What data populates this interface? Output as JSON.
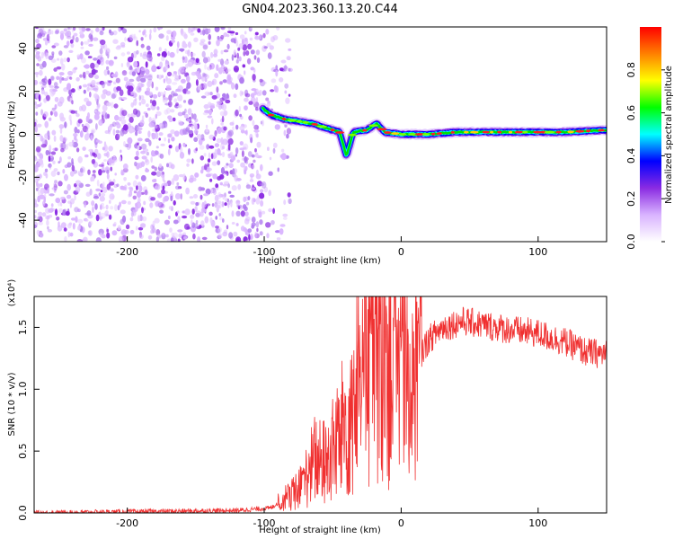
{
  "title": "GN04.2023.360.13.20.C44",
  "chart_data": [
    {
      "type": "heatmap",
      "xlabel": "Height of straight line (km)",
      "ylabel": "Frequency (Hz)",
      "xlim": [
        -268,
        150
      ],
      "ylim": [
        -50,
        50
      ],
      "x_ticks": [
        "-200",
        "-100",
        "0",
        "100"
      ],
      "y_ticks": [
        "40",
        "20",
        "0",
        "-20",
        "-40"
      ],
      "noise_region_x": [
        -268,
        -92
      ],
      "signal_track": [
        {
          "x": -101,
          "y": 12
        },
        {
          "x": -95,
          "y": 9
        },
        {
          "x": -85,
          "y": 7
        },
        {
          "x": -75,
          "y": 6
        },
        {
          "x": -65,
          "y": 5
        },
        {
          "x": -55,
          "y": 3
        },
        {
          "x": -45,
          "y": 1
        },
        {
          "x": -40,
          "y": -10
        },
        {
          "x": -35,
          "y": 1
        },
        {
          "x": -25,
          "y": 2
        },
        {
          "x": -18,
          "y": 5
        },
        {
          "x": -12,
          "y": 1
        },
        {
          "x": 0,
          "y": 0
        },
        {
          "x": 20,
          "y": 0
        },
        {
          "x": 40,
          "y": 1
        },
        {
          "x": 60,
          "y": 1
        },
        {
          "x": 80,
          "y": 1
        },
        {
          "x": 100,
          "y": 1
        },
        {
          "x": 120,
          "y": 1
        },
        {
          "x": 150,
          "y": 2
        }
      ],
      "colorbar": {
        "label": "Normalized spectral amplitude",
        "ticks": [
          "0.0",
          "0.2",
          "0.4",
          "0.6",
          "0.8"
        ],
        "range": [
          0,
          1
        ],
        "colors": [
          "#ffffff",
          "#d9b3ff",
          "#8a2be2",
          "#0000ff",
          "#00ffff",
          "#00ff00",
          "#ffff00",
          "#ff8000",
          "#ff0000"
        ]
      }
    },
    {
      "type": "line",
      "xlabel": "Height of straight line (km)",
      "ylabel": "SNR (10 * v/v)",
      "multiplier": "(x10⁴)",
      "xlim": [
        -268,
        150
      ],
      "ylim": [
        0,
        1.75
      ],
      "x_ticks": [
        "-200",
        "-100",
        "0",
        "100"
      ],
      "y_ticks": [
        "1.5",
        "1.0",
        "0.5",
        "0.0"
      ],
      "color": "#f03030",
      "envelope": [
        {
          "x": -268,
          "y": 0.0
        },
        {
          "x": -120,
          "y": 0.02
        },
        {
          "x": -95,
          "y": 0.04
        },
        {
          "x": -88,
          "y": 0.1
        },
        {
          "x": -75,
          "y": 0.18
        },
        {
          "x": -62,
          "y": 0.45
        },
        {
          "x": -55,
          "y": 0.4
        },
        {
          "x": -45,
          "y": 0.6
        },
        {
          "x": -35,
          "y": 0.9
        },
        {
          "x": -25,
          "y": 1.2
        },
        {
          "x": -10,
          "y": 1.45
        },
        {
          "x": 0,
          "y": 1.05
        },
        {
          "x": 10,
          "y": 1.2
        },
        {
          "x": 20,
          "y": 1.4
        },
        {
          "x": 30,
          "y": 1.5
        },
        {
          "x": 45,
          "y": 1.55
        },
        {
          "x": 60,
          "y": 1.52
        },
        {
          "x": 80,
          "y": 1.48
        },
        {
          "x": 100,
          "y": 1.45
        },
        {
          "x": 120,
          "y": 1.38
        },
        {
          "x": 135,
          "y": 1.3
        },
        {
          "x": 150,
          "y": 1.28
        }
      ]
    }
  ]
}
